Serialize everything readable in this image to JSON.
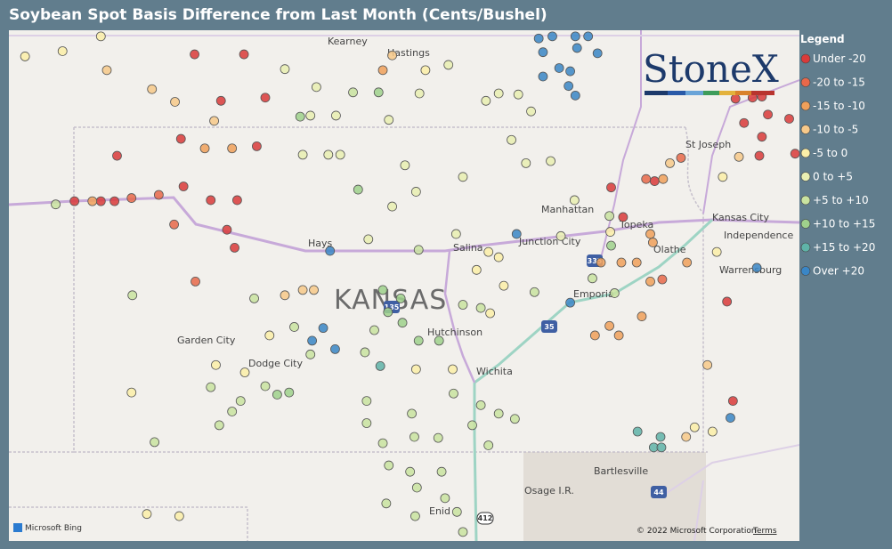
{
  "title": "Soybean Spot Basis Difference from Last Month (Cents/Bushel)",
  "legend": {
    "title": "Legend",
    "items": [
      {
        "label": "Under -20",
        "color": "#d93a3a"
      },
      {
        "label": "-20 to -15",
        "color": "#e8684a"
      },
      {
        "label": "-15 to -10",
        "color": "#f0a05a"
      },
      {
        "label": "-10 to -5",
        "color": "#f7c98a"
      },
      {
        "label": "-5 to 0",
        "color": "#fbefa8"
      },
      {
        "label": "0 to +5",
        "color": "#e9efb2"
      },
      {
        "label": "+5 to +10",
        "color": "#c9e3a0"
      },
      {
        "label": "+10 to +15",
        "color": "#9fd18c"
      },
      {
        "label": "+15 to +20",
        "color": "#5fb3a8"
      },
      {
        "label": "Over +20",
        "color": "#3a86c6"
      }
    ]
  },
  "map_labels": [
    "Kearney",
    "Hastings",
    "St Joseph",
    "Manhattan",
    "Topeka",
    "Kansas City",
    "Independence",
    "Hays",
    "Salina",
    "Junction City",
    "Olathe",
    "Emporia",
    "Warrensburg",
    "KANSAS",
    "Garden City",
    "Dodge City",
    "Hutchinson",
    "Wichita",
    "Bartlesville",
    "Osage I.R.",
    "Enid"
  ],
  "shields": [
    "335",
    "35",
    "135",
    "44",
    "412"
  ],
  "logo": "StoneX",
  "attribution": [
    "Microsoft Bing",
    "© 2022 Microsoft Corporation",
    "Terms"
  ],
  "points": [
    [
      -102.04,
      39.35,
      0
    ],
    [
      -101.73,
      39.35,
      0
    ],
    [
      -101.57,
      39.35,
      0
    ],
    [
      -101.37,
      39.38,
      1
    ],
    [
      -101.05,
      39.41,
      1
    ],
    [
      -100.76,
      39.49,
      0
    ],
    [
      -100.44,
      39.36,
      0
    ],
    [
      -100.13,
      39.36,
      0
    ],
    [
      -100.87,
      39.13,
      1
    ],
    [
      -100.25,
      39.08,
      0
    ],
    [
      -100.16,
      38.91,
      0
    ],
    [
      -100.79,
      39.94,
      0
    ],
    [
      -99.9,
      39.87,
      0
    ],
    [
      -101.54,
      39.78,
      0
    ],
    [
      -100.63,
      40.74,
      0
    ],
    [
      -100.05,
      40.74,
      0
    ],
    [
      -100.32,
      40.3,
      0
    ],
    [
      -99.8,
      40.33,
      0
    ],
    [
      -100.62,
      38.59,
      1
    ],
    [
      -102.26,
      39.32,
      6
    ],
    [
      -101.83,
      39.35,
      2
    ],
    [
      -100.51,
      39.85,
      2
    ],
    [
      -100.19,
      39.85,
      2
    ],
    [
      -101.66,
      40.59,
      3
    ],
    [
      -101.13,
      40.41,
      3
    ],
    [
      -100.86,
      40.29,
      3
    ],
    [
      -100.4,
      40.11,
      3
    ],
    [
      -102.62,
      40.72,
      4
    ],
    [
      -102.18,
      40.77,
      4
    ],
    [
      -96.59,
      40.89,
      9
    ],
    [
      -96.43,
      40.91,
      9
    ],
    [
      -96.16,
      40.91,
      9
    ],
    [
      -96.01,
      40.91,
      9
    ],
    [
      -96.54,
      40.76,
      9
    ],
    [
      -96.14,
      40.8,
      9
    ],
    [
      -95.9,
      40.75,
      9
    ],
    [
      -96.35,
      40.61,
      9
    ],
    [
      -96.54,
      40.53,
      9
    ],
    [
      -96.22,
      40.58,
      9
    ],
    [
      -96.24,
      40.44,
      9
    ],
    [
      -96.16,
      40.35,
      9
    ],
    [
      -94.28,
      40.32,
      0
    ],
    [
      -94.08,
      40.33,
      0
    ],
    [
      -93.97,
      40.34,
      0
    ],
    [
      -93.65,
      40.13,
      0
    ],
    [
      -93.9,
      40.17,
      0
    ],
    [
      -94.18,
      40.09,
      0
    ],
    [
      -93.97,
      39.96,
      0
    ],
    [
      -93.58,
      39.8,
      0
    ],
    [
      -94.0,
      39.78,
      0
    ],
    [
      -95.74,
      39.48,
      0
    ],
    [
      -95.6,
      39.2,
      0
    ],
    [
      -95.23,
      39.54,
      0
    ],
    [
      -94.38,
      38.4,
      0
    ],
    [
      -94.31,
      37.46,
      0
    ],
    [
      -95.33,
      39.56,
      1
    ],
    [
      -94.92,
      39.76,
      1
    ],
    [
      -95.13,
      39.56,
      2
    ],
    [
      -95.28,
      39.04,
      2
    ],
    [
      -95.25,
      38.96,
      2
    ],
    [
      -95.62,
      38.77,
      2
    ],
    [
      -95.86,
      38.77,
      2
    ],
    [
      -95.44,
      38.77,
      2
    ],
    [
      -95.14,
      38.61,
      1
    ],
    [
      -95.28,
      38.59,
      2
    ],
    [
      -94.85,
      38.77,
      2
    ],
    [
      -95.93,
      38.08,
      2
    ],
    [
      -95.76,
      38.17,
      2
    ],
    [
      -95.65,
      38.08,
      2
    ],
    [
      -95.38,
      38.26,
      2
    ],
    [
      -94.24,
      39.77,
      3
    ],
    [
      -95.05,
      39.71,
      3
    ],
    [
      -94.61,
      37.8,
      3
    ],
    [
      -94.86,
      37.12,
      3
    ],
    [
      -95.75,
      39.06,
      4
    ],
    [
      -94.5,
      38.87,
      4
    ],
    [
      -94.43,
      39.58,
      4
    ],
    [
      -96.85,
      39.04,
      9
    ],
    [
      -99.04,
      38.88,
      9
    ],
    [
      -96.22,
      38.39,
      9
    ],
    [
      -99.12,
      38.15,
      9
    ],
    [
      -99.25,
      38.03,
      9
    ],
    [
      -98.98,
      37.95,
      9
    ],
    [
      -94.03,
      38.72,
      9
    ],
    [
      -94.34,
      37.3,
      9
    ],
    [
      -98.45,
      37.79,
      8
    ],
    [
      -95.43,
      37.17,
      8
    ],
    [
      -95.24,
      37.02,
      8
    ],
    [
      -95.15,
      37.02,
      8
    ],
    [
      -95.16,
      37.12,
      8
    ],
    [
      -99.36,
      39.79,
      5
    ],
    [
      -99.06,
      39.79,
      5
    ],
    [
      -98.92,
      39.79,
      5
    ],
    [
      -98.16,
      39.69,
      5
    ],
    [
      -98.03,
      39.44,
      5
    ],
    [
      -98.31,
      39.3,
      5
    ],
    [
      -97.48,
      39.58,
      5
    ],
    [
      -96.91,
      39.93,
      5
    ],
    [
      -96.74,
      39.71,
      5
    ],
    [
      -96.45,
      39.73,
      5
    ],
    [
      -97.56,
      39.04,
      5
    ],
    [
      -98.59,
      38.99,
      5
    ],
    [
      -97.18,
      38.87,
      4
    ],
    [
      -97.06,
      38.82,
      4
    ],
    [
      -97.32,
      38.7,
      4
    ],
    [
      -97.0,
      38.55,
      4
    ],
    [
      -97.16,
      38.29,
      4
    ],
    [
      -99.57,
      38.46,
      3
    ],
    [
      -99.36,
      38.51,
      3
    ],
    [
      -99.23,
      38.51,
      3
    ],
    [
      -97.48,
      38.37,
      6
    ],
    [
      -99.46,
      38.16,
      6
    ],
    [
      -98.42,
      38.51,
      7
    ],
    [
      -98.21,
      38.43,
      7
    ],
    [
      -98.36,
      38.3,
      7
    ],
    [
      -98.0,
      38.03,
      7
    ],
    [
      -97.76,
      38.03,
      7
    ],
    [
      -98.63,
      37.92,
      6
    ],
    [
      -99.27,
      37.9,
      6
    ],
    [
      -99.66,
      37.52,
      7
    ],
    [
      -99.52,
      37.54,
      7
    ],
    [
      -100.19,
      37.36,
      6
    ],
    [
      -100.44,
      37.59,
      6
    ],
    [
      -100.34,
      37.23,
      6
    ],
    [
      -98.61,
      37.46,
      6
    ],
    [
      -98.08,
      37.34,
      6
    ],
    [
      -97.59,
      37.53,
      6
    ],
    [
      -97.27,
      37.42,
      6
    ],
    [
      -96.87,
      37.29,
      6
    ],
    [
      -97.37,
      37.23,
      6
    ],
    [
      -98.42,
      37.06,
      6
    ],
    [
      -97.77,
      37.11,
      6
    ],
    [
      -97.18,
      37.04,
      6
    ],
    [
      -98.35,
      36.85,
      6
    ],
    [
      -97.73,
      36.79,
      6
    ],
    [
      -98.02,
      36.64,
      6
    ],
    [
      -98.38,
      36.49,
      6
    ],
    [
      -97.69,
      36.54,
      6
    ],
    [
      -98.04,
      36.37,
      6
    ],
    [
      -97.55,
      36.41,
      6
    ],
    [
      -97.48,
      36.22,
      6
    ],
    [
      -101.36,
      38.46,
      6
    ],
    [
      -101.37,
      37.54,
      4
    ],
    [
      -101.1,
      37.07,
      6
    ],
    [
      -99.93,
      38.43,
      6
    ],
    [
      -98.71,
      39.46,
      7
    ],
    [
      -99.39,
      40.15,
      7
    ],
    [
      -98.47,
      40.38,
      7
    ],
    [
      -98.77,
      40.38,
      6
    ],
    [
      -99.57,
      40.6,
      5
    ],
    [
      -99.2,
      40.43,
      5
    ],
    [
      -98.97,
      40.16,
      5
    ],
    [
      -98.35,
      40.12,
      5
    ],
    [
      -97.99,
      40.37,
      5
    ],
    [
      -97.65,
      40.64,
      5
    ],
    [
      -97.21,
      40.3,
      5
    ],
    [
      -96.83,
      40.36,
      5
    ],
    [
      -96.68,
      40.2,
      5
    ],
    [
      -98.42,
      40.59,
      2
    ],
    [
      -98.31,
      40.73,
      3
    ],
    [
      -97.92,
      40.59,
      4
    ],
    [
      -101.73,
      40.91,
      4
    ],
    [
      -99.75,
      38.08,
      4
    ],
    [
      -100.38,
      37.8,
      4
    ],
    [
      -100.04,
      37.73,
      4
    ],
    [
      -98.03,
      37.76,
      4
    ],
    [
      -97.6,
      37.76,
      4
    ],
    [
      -101.19,
      36.39,
      4
    ],
    [
      -100.81,
      36.37,
      4
    ],
    [
      -98.0,
      38.89,
      6
    ],
    [
      -96.64,
      38.49,
      6
    ],
    [
      -95.7,
      38.48,
      6
    ],
    [
      -95.96,
      38.62,
      6
    ],
    [
      -95.74,
      38.93,
      7
    ],
    [
      -95.76,
      39.21,
      6
    ],
    [
      -96.33,
      39.02,
      5
    ],
    [
      -96.17,
      39.36,
      5
    ],
    [
      -94.76,
      37.21,
      4
    ],
    [
      -94.55,
      37.17,
      4
    ],
    [
      -97.06,
      40.37,
      5
    ],
    [
      -99.27,
      40.16,
      5
    ],
    [
      -97.06,
      37.34,
      6
    ],
    [
      -97.27,
      38.34,
      6
    ],
    [
      -98.19,
      38.2,
      7
    ],
    [
      -98.52,
      38.13,
      6
    ],
    [
      -99.8,
      37.6,
      6
    ],
    [
      -100.09,
      37.46,
      6
    ],
    [
      -98.61,
      37.25,
      6
    ],
    [
      -98.05,
      37.12,
      6
    ],
    [
      -98.1,
      36.79,
      6
    ]
  ]
}
